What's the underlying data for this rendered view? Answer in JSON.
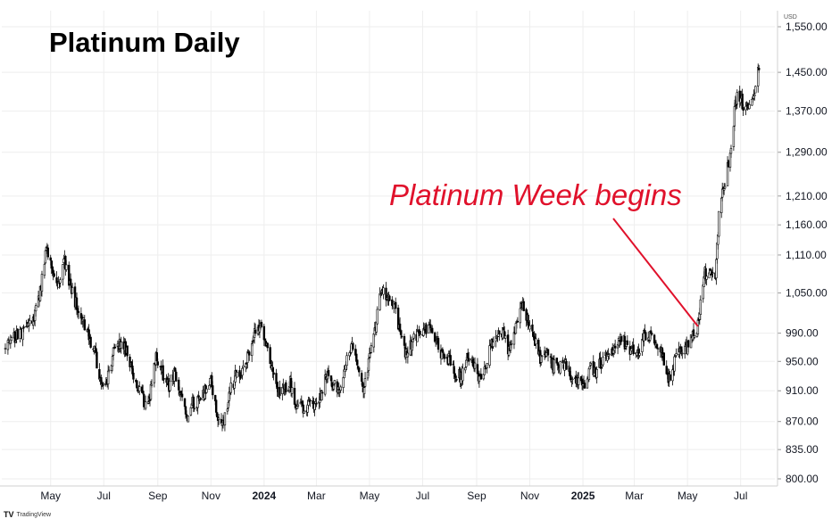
{
  "header": {
    "title": "Platinum Daily"
  },
  "annotation": {
    "text": "Platinum Week begins",
    "color": "#e0112b",
    "target": {
      "x": "2025-05-13",
      "y": 1000
    }
  },
  "currency_label": "USD",
  "brand": {
    "logo": "TV",
    "name": "TradingView"
  },
  "chart_data": {
    "type": "candlestick",
    "title": "Platinum Daily",
    "xlabel": "",
    "ylabel": "",
    "y_scale": "log",
    "ylim": [
      800,
      1550
    ],
    "y_ticks": [
      1550,
      1450,
      1370,
      1290,
      1210,
      1160,
      1110,
      1050,
      990,
      950,
      910,
      870,
      835,
      800
    ],
    "y_tick_labels": [
      "1,550.00",
      "1,450.00",
      "1,370.00",
      "1,290.00",
      "1,210.00",
      "1,160.00",
      "1,110.00",
      "1,050.00",
      "990.00",
      "950.00",
      "910.00",
      "870.00",
      "835.00",
      "800.00"
    ],
    "xlim": [
      "2023-03-09",
      "2025-07-30"
    ],
    "x_ticks": [
      {
        "date": "2023-05-01",
        "label": "May",
        "bold": false
      },
      {
        "date": "2023-07-01",
        "label": "Jul",
        "bold": false
      },
      {
        "date": "2023-09-01",
        "label": "Sep",
        "bold": false
      },
      {
        "date": "2023-11-01",
        "label": "Nov",
        "bold": false
      },
      {
        "date": "2024-01-01",
        "label": "2024",
        "bold": true
      },
      {
        "date": "2024-03-01",
        "label": "Mar",
        "bold": false
      },
      {
        "date": "2024-05-01",
        "label": "May",
        "bold": false
      },
      {
        "date": "2024-07-01",
        "label": "Jul",
        "bold": false
      },
      {
        "date": "2024-09-01",
        "label": "Sep",
        "bold": false
      },
      {
        "date": "2024-11-01",
        "label": "Nov",
        "bold": false
      },
      {
        "date": "2025-01-01",
        "label": "2025",
        "bold": true
      },
      {
        "date": "2025-03-01",
        "label": "Mar",
        "bold": false
      },
      {
        "date": "2025-05-01",
        "label": "May",
        "bold": false
      },
      {
        "date": "2025-07-01",
        "label": "Jul",
        "bold": false
      }
    ],
    "grid": true,
    "series": [
      {
        "points": [
          [
            "2023-03-10",
            965
          ],
          [
            "2023-03-20",
            985
          ],
          [
            "2023-03-31",
            992
          ],
          [
            "2023-04-10",
            1005
          ],
          [
            "2023-04-20",
            1060
          ],
          [
            "2023-04-26",
            1120
          ],
          [
            "2023-05-03",
            1090
          ],
          [
            "2023-05-10",
            1060
          ],
          [
            "2023-05-16",
            1105
          ],
          [
            "2023-05-23",
            1065
          ],
          [
            "2023-05-31",
            1030
          ],
          [
            "2023-06-07",
            1010
          ],
          [
            "2023-06-14",
            985
          ],
          [
            "2023-06-21",
            960
          ],
          [
            "2023-06-28",
            915
          ],
          [
            "2023-07-05",
            925
          ],
          [
            "2023-07-12",
            960
          ],
          [
            "2023-07-19",
            975
          ],
          [
            "2023-07-26",
            965
          ],
          [
            "2023-08-02",
            935
          ],
          [
            "2023-08-09",
            915
          ],
          [
            "2023-08-16",
            895
          ],
          [
            "2023-08-23",
            905
          ],
          [
            "2023-08-30",
            955
          ],
          [
            "2023-09-06",
            935
          ],
          [
            "2023-09-13",
            915
          ],
          [
            "2023-09-20",
            935
          ],
          [
            "2023-09-27",
            905
          ],
          [
            "2023-10-04",
            875
          ],
          [
            "2023-10-11",
            895
          ],
          [
            "2023-10-18",
            895
          ],
          [
            "2023-10-25",
            910
          ],
          [
            "2023-11-01",
            925
          ],
          [
            "2023-11-08",
            880
          ],
          [
            "2023-11-15",
            865
          ],
          [
            "2023-11-22",
            905
          ],
          [
            "2023-11-29",
            930
          ],
          [
            "2023-12-06",
            930
          ],
          [
            "2023-12-13",
            955
          ],
          [
            "2023-12-20",
            985
          ],
          [
            "2023-12-27",
            1005
          ],
          [
            "2024-01-03",
            980
          ],
          [
            "2024-01-10",
            935
          ],
          [
            "2024-01-17",
            905
          ],
          [
            "2024-01-24",
            915
          ],
          [
            "2024-01-31",
            920
          ],
          [
            "2024-02-07",
            890
          ],
          [
            "2024-02-14",
            885
          ],
          [
            "2024-02-21",
            890
          ],
          [
            "2024-02-28",
            885
          ],
          [
            "2024-03-06",
            905
          ],
          [
            "2024-03-13",
            930
          ],
          [
            "2024-03-20",
            920
          ],
          [
            "2024-03-27",
            910
          ],
          [
            "2024-04-03",
            940
          ],
          [
            "2024-04-10",
            975
          ],
          [
            "2024-04-17",
            945
          ],
          [
            "2024-04-24",
            915
          ],
          [
            "2024-05-01",
            955
          ],
          [
            "2024-05-08",
            1000
          ],
          [
            "2024-05-15",
            1060
          ],
          [
            "2024-05-22",
            1040
          ],
          [
            "2024-05-29",
            1035
          ],
          [
            "2024-06-05",
            990
          ],
          [
            "2024-06-12",
            960
          ],
          [
            "2024-06-19",
            975
          ],
          [
            "2024-06-26",
            990
          ],
          [
            "2024-07-03",
            1000
          ],
          [
            "2024-07-10",
            995
          ],
          [
            "2024-07-17",
            980
          ],
          [
            "2024-07-24",
            955
          ],
          [
            "2024-07-31",
            955
          ],
          [
            "2024-08-07",
            930
          ],
          [
            "2024-08-14",
            930
          ],
          [
            "2024-08-21",
            955
          ],
          [
            "2024-08-28",
            945
          ],
          [
            "2024-09-04",
            925
          ],
          [
            "2024-09-11",
            940
          ],
          [
            "2024-09-18",
            975
          ],
          [
            "2024-09-25",
            985
          ],
          [
            "2024-10-02",
            990
          ],
          [
            "2024-10-09",
            960
          ],
          [
            "2024-10-16",
            995
          ],
          [
            "2024-10-23",
            1030
          ],
          [
            "2024-10-30",
            1005
          ],
          [
            "2024-11-06",
            985
          ],
          [
            "2024-11-13",
            955
          ],
          [
            "2024-11-20",
            960
          ],
          [
            "2024-11-27",
            945
          ],
          [
            "2024-12-04",
            940
          ],
          [
            "2024-12-11",
            945
          ],
          [
            "2024-12-18",
            930
          ],
          [
            "2024-12-25",
            920
          ],
          [
            "2025-01-01",
            915
          ],
          [
            "2025-01-08",
            940
          ],
          [
            "2025-01-15",
            935
          ],
          [
            "2025-01-22",
            950
          ],
          [
            "2025-01-29",
            955
          ],
          [
            "2025-02-05",
            970
          ],
          [
            "2025-02-12",
            985
          ],
          [
            "2025-02-19",
            975
          ],
          [
            "2025-02-26",
            965
          ],
          [
            "2025-03-05",
            965
          ],
          [
            "2025-03-12",
            985
          ],
          [
            "2025-03-19",
            990
          ],
          [
            "2025-03-26",
            980
          ],
          [
            "2025-04-02",
            960
          ],
          [
            "2025-04-09",
            920
          ],
          [
            "2025-04-16",
            950
          ],
          [
            "2025-04-23",
            965
          ],
          [
            "2025-04-30",
            970
          ],
          [
            "2025-05-07",
            985
          ],
          [
            "2025-05-13",
            1000
          ],
          [
            "2025-05-20",
            1080
          ],
          [
            "2025-05-27",
            1085
          ],
          [
            "2025-06-02",
            1070
          ],
          [
            "2025-06-06",
            1180
          ],
          [
            "2025-06-11",
            1220
          ],
          [
            "2025-06-16",
            1260
          ],
          [
            "2025-06-20",
            1290
          ],
          [
            "2025-06-24",
            1370
          ],
          [
            "2025-06-27",
            1400
          ],
          [
            "2025-07-02",
            1390
          ],
          [
            "2025-07-09",
            1370
          ],
          [
            "2025-07-16",
            1400
          ],
          [
            "2025-07-22",
            1460
          ]
        ]
      }
    ]
  }
}
